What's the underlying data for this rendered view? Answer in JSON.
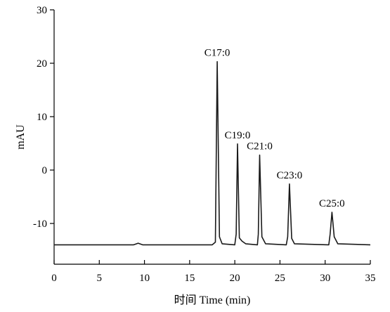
{
  "chart_data": {
    "type": "line",
    "title": "",
    "xlabel": "时间 Time (min)",
    "ylabel": "mAU",
    "xlim": [
      0,
      35
    ],
    "ylim": [
      -17.5,
      30
    ],
    "x_ticks": [
      "0",
      "5",
      "10",
      "15",
      "20",
      "25",
      "30",
      "35"
    ],
    "y_ticks": [
      "30",
      "20",
      "10",
      "0",
      "-10"
    ],
    "grid": false,
    "legend": "none",
    "line_color": "#000000",
    "baseline": -14.0,
    "series": [
      {
        "values": [
          [
            0,
            -14.0
          ],
          [
            5,
            -14.0
          ],
          [
            8.8,
            -14.0
          ],
          [
            9.3,
            -13.7
          ],
          [
            9.8,
            -14.0
          ],
          [
            17.5,
            -14.0
          ],
          [
            17.85,
            -13.5
          ],
          [
            18.05,
            20.3
          ],
          [
            18.3,
            -12.5
          ],
          [
            18.6,
            -13.8
          ],
          [
            20.0,
            -14.0
          ],
          [
            20.15,
            -12.0
          ],
          [
            20.3,
            4.9
          ],
          [
            20.5,
            -12.7
          ],
          [
            20.8,
            -13.3
          ],
          [
            21.2,
            -13.8
          ],
          [
            22.5,
            -14.0
          ],
          [
            22.6,
            -12.0
          ],
          [
            22.75,
            2.8
          ],
          [
            23.0,
            -12.5
          ],
          [
            23.4,
            -13.8
          ],
          [
            25.7,
            -14.0
          ],
          [
            25.85,
            -12.5
          ],
          [
            26.05,
            -2.6
          ],
          [
            26.3,
            -12.8
          ],
          [
            26.6,
            -13.8
          ],
          [
            30.4,
            -14.0
          ],
          [
            30.55,
            -12.0
          ],
          [
            30.75,
            -7.9
          ],
          [
            31.0,
            -12.5
          ],
          [
            31.4,
            -13.8
          ],
          [
            35,
            -14.0
          ]
        ]
      }
    ],
    "annotations": [
      {
        "text": "C17:0",
        "x": 18.05,
        "y": 20.3
      },
      {
        "text": "C19:0",
        "x": 20.3,
        "y": 4.9
      },
      {
        "text": "C21:0",
        "x": 22.75,
        "y": 2.8
      },
      {
        "text": "C23:0",
        "x": 26.05,
        "y": -2.6
      },
      {
        "text": "C25:0",
        "x": 30.75,
        "y": -7.9
      }
    ]
  }
}
